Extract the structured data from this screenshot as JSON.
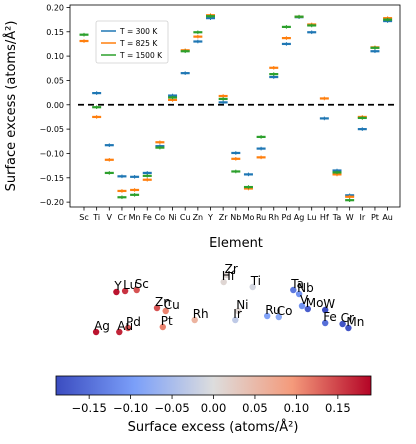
{
  "chart_data": [
    {
      "type": "errorbar",
      "xlabel": "Element",
      "ylabel": "Surface excess (atoms/Å²)",
      "ylim": [
        -0.21,
        0.205
      ],
      "yticks": [
        -0.2,
        -0.15,
        -0.1,
        -0.05,
        0.0,
        0.05,
        0.1,
        0.15,
        0.2
      ],
      "ytick_labels": [
        "−0.20",
        "−0.15",
        "−0.10",
        "−0.05",
        "0.00",
        "0.05",
        "0.10",
        "0.15",
        "0.20"
      ],
      "categories": [
        "Sc",
        "Ti",
        "V",
        "Cr",
        "Mn",
        "Fe",
        "Co",
        "Ni",
        "Cu",
        "Zn",
        "Y",
        "Zr",
        "Nb",
        "Mo",
        "Ru",
        "Rh",
        "Pd",
        "Ag",
        "Lu",
        "Hf",
        "Ta",
        "W",
        "Ir",
        "Pt",
        "Au"
      ],
      "reference_line": {
        "y": 0.0,
        "style": "dashed",
        "color": "#000000"
      },
      "legend": {
        "position": "upper-left-inset"
      },
      "series": [
        {
          "name": "T = 300 K",
          "color": "#1f77b4",
          "values": [
            null,
            0.024,
            -0.083,
            -0.147,
            -0.148,
            -0.14,
            -0.085,
            0.019,
            0.065,
            0.13,
            0.178,
            0.005,
            -0.099,
            -0.143,
            -0.09,
            0.057,
            0.125,
            0.18,
            0.149,
            -0.028,
            -0.135,
            -0.186,
            -0.05,
            0.11,
            0.172
          ]
        },
        {
          "name": "T = 825 K",
          "color": "#ff7f0e",
          "values": [
            0.131,
            -0.025,
            -0.113,
            -0.177,
            -0.175,
            -0.154,
            -0.077,
            0.01,
            0.112,
            0.14,
            0.184,
            0.018,
            -0.111,
            -0.172,
            -0.108,
            0.076,
            0.137,
            0.181,
            0.165,
            0.013,
            -0.143,
            -0.189,
            -0.025,
            0.118,
            0.178
          ]
        },
        {
          "name": "T = 1500 K",
          "color": "#2ca02c",
          "values": [
            0.144,
            -0.005,
            -0.14,
            -0.19,
            -0.185,
            -0.146,
            -0.088,
            0.015,
            0.11,
            0.149,
            0.182,
            0.012,
            -0.137,
            -0.169,
            -0.066,
            0.063,
            0.16,
            0.181,
            0.163,
            null,
            -0.139,
            -0.196,
            -0.027,
            0.117,
            0.175
          ]
        }
      ]
    },
    {
      "type": "scatter",
      "colorbar": {
        "label": "Surface excess (atoms/Å²)",
        "range": [
          -0.19,
          0.19
        ],
        "ticks": [
          -0.15,
          -0.1,
          -0.05,
          0.0,
          0.05,
          0.1,
          0.15
        ],
        "tick_labels": [
          "−0.15",
          "−0.10",
          "−0.05",
          "0.00",
          "0.05",
          "0.10",
          "0.15"
        ],
        "colormap": "coolwarm_r"
      },
      "points": [
        {
          "label": "Zr",
          "x": 0.54,
          "y": 0.87,
          "value": 0.01
        },
        {
          "label": "Hf",
          "x": 0.53,
          "y": 0.8,
          "value": 0.01
        },
        {
          "label": "Ti",
          "x": 0.63,
          "y": 0.75,
          "value": -0.01
        },
        {
          "label": "Ta",
          "x": 0.77,
          "y": 0.72,
          "value": -0.14
        },
        {
          "label": "Nb",
          "x": 0.79,
          "y": 0.68,
          "value": -0.11
        },
        {
          "label": "Y",
          "x": 0.16,
          "y": 0.7,
          "value": 0.18
        },
        {
          "label": "Lu",
          "x": 0.19,
          "y": 0.71,
          "value": 0.16
        },
        {
          "label": "Sc",
          "x": 0.23,
          "y": 0.72,
          "value": 0.14
        },
        {
          "label": "V",
          "x": 0.8,
          "y": 0.56,
          "value": -0.11
        },
        {
          "label": "Mo",
          "x": 0.82,
          "y": 0.53,
          "value": -0.17
        },
        {
          "label": "W",
          "x": 0.88,
          "y": 0.52,
          "value": -0.19
        },
        {
          "label": "Zn",
          "x": 0.3,
          "y": 0.54,
          "value": 0.14
        },
        {
          "label": "Cu",
          "x": 0.33,
          "y": 0.51,
          "value": 0.11
        },
        {
          "label": "Ni",
          "x": 0.58,
          "y": 0.51,
          "value": 0.01
        },
        {
          "label": "Ru",
          "x": 0.68,
          "y": 0.46,
          "value": -0.09
        },
        {
          "label": "Co",
          "x": 0.72,
          "y": 0.45,
          "value": -0.08
        },
        {
          "label": "Rh",
          "x": 0.43,
          "y": 0.42,
          "value": 0.06
        },
        {
          "label": "Ir",
          "x": 0.57,
          "y": 0.42,
          "value": -0.03
        },
        {
          "label": "Fe",
          "x": 0.88,
          "y": 0.39,
          "value": -0.15
        },
        {
          "label": "Cr",
          "x": 0.94,
          "y": 0.38,
          "value": -0.18
        },
        {
          "label": "Mn",
          "x": 0.96,
          "y": 0.34,
          "value": -0.18
        },
        {
          "label": "Pd",
          "x": 0.2,
          "y": 0.34,
          "value": 0.14
        },
        {
          "label": "Pt",
          "x": 0.32,
          "y": 0.35,
          "value": 0.11
        },
        {
          "label": "Ag",
          "x": 0.09,
          "y": 0.3,
          "value": 0.18
        },
        {
          "label": "Au",
          "x": 0.17,
          "y": 0.3,
          "value": 0.17
        }
      ]
    }
  ]
}
